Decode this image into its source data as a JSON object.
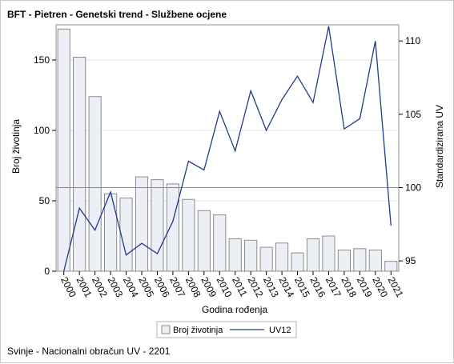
{
  "chart_data": {
    "type": "bar",
    "title": "BFT - Pietren - Genetski trend - Službene ocjene",
    "xlabel": "Godina rođenja",
    "ylabel": "Broj životinja",
    "y2label": "Standardizirana UV",
    "footnote": "Svinje - Nacionalni obračun UV - 2201",
    "categories": [
      "2000",
      "2001",
      "2002",
      "2003",
      "2004",
      "2005",
      "2006",
      "2007",
      "2008",
      "2009",
      "2010",
      "2011",
      "2012",
      "2013",
      "2014",
      "2015",
      "2016",
      "2017",
      "2018",
      "2019",
      "2020",
      "2021"
    ],
    "series": [
      {
        "name": "Broj životinja",
        "type": "bar",
        "axis": "left",
        "color": "#eceff5",
        "values": [
          172,
          152,
          124,
          55,
          52,
          67,
          65,
          62,
          51,
          43,
          40,
          23,
          22,
          17,
          20,
          13,
          23,
          25,
          15,
          16,
          15,
          7
        ]
      },
      {
        "name": "UV12",
        "type": "line",
        "axis": "right",
        "color": "#1f3b8c",
        "values": [
          94.3,
          98.6,
          97.1,
          99.7,
          95.4,
          96.2,
          95.5,
          97.7,
          101.8,
          101.2,
          105.2,
          102.5,
          106.6,
          103.9,
          106.0,
          107.6,
          105.8,
          111.0,
          104.0,
          104.7,
          110.0,
          97.4
        ]
      }
    ],
    "ylim": [
      0,
      175
    ],
    "yticks": [
      0,
      50,
      100,
      150
    ],
    "y2lim": [
      94.3,
      111.1
    ],
    "y2ticks": [
      95,
      100,
      105,
      110
    ],
    "reference_line": {
      "axis": "right",
      "value": 100
    },
    "grid": true,
    "legend_position": "bottom"
  }
}
